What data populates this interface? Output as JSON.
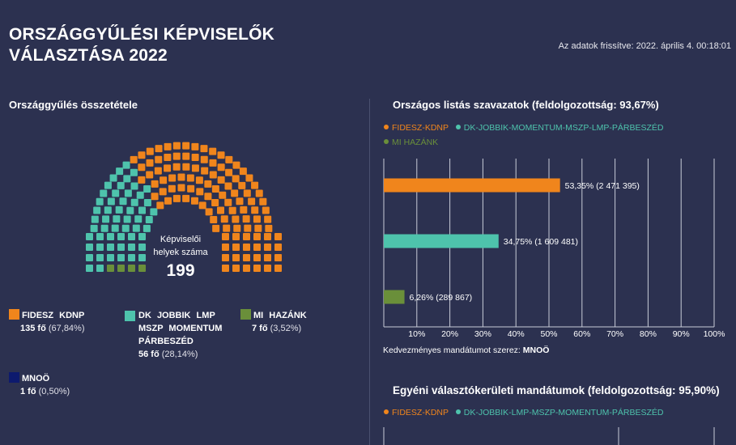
{
  "header": {
    "title": "ORSZÁGGYŰLÉSI KÉPVISELŐK VÁLASZTÁSA 2022",
    "updated": "Az adatok frissítve: 2022. április 4. 00:18:01"
  },
  "composition": {
    "title": "Országgyűlés összetétele",
    "center_label_1": "Képviselői",
    "center_label_2": "helyek száma",
    "total": "199",
    "parties": [
      {
        "name": "FIDESZ KDNP",
        "count": "135 fő",
        "pct": "(67,84%)",
        "color": "#f0851c",
        "seats": 135
      },
      {
        "name": "DK JOBBIK LMP MSZP MOMENTUM PÁRBESZÉD",
        "count": "56 fő",
        "pct": "(28,14%)",
        "color": "#4ec3ac",
        "seats": 56
      },
      {
        "name": "MI HAZÁNK",
        "count": "7 fő",
        "pct": "(3,52%)",
        "color": "#6a8f3a",
        "seats": 7
      },
      {
        "name": "MNOÖ",
        "count": "1 fő",
        "pct": "(0,50%)",
        "color": "#0d1a6e",
        "seats": 1
      }
    ]
  },
  "list_votes": {
    "legend": [
      {
        "name": "FIDESZ-KDNP",
        "color": "#f0851c"
      },
      {
        "name": "DK-JOBBIK-MOMENTUM-MSZP-LMP-PÁRBESZÉD",
        "color": "#4ec3ac"
      },
      {
        "name": "MI HAZÁNK",
        "color": "#6a8f3a"
      }
    ],
    "note_prefix": "Kedvezményes mandátumot szerez:",
    "note_value": "MNOÖ"
  },
  "chart_data": {
    "type": "bar",
    "orientation": "horizontal",
    "title": "Országos listás szavazatok (feldolgozottság: 93,67%)",
    "categories": [
      "FIDESZ-KDNP",
      "DK-JOBBIK-MOMENTUM-MSZP-LMP-PÁRBESZÉD",
      "MI HAZÁNK"
    ],
    "values": [
      53.35,
      34.75,
      6.26
    ],
    "data_labels": [
      "53,35% (2 471 395)",
      "34,75% (1 609 481)",
      "6,26% (289 867)"
    ],
    "colors": [
      "#f0851c",
      "#4ec3ac",
      "#6a8f3a"
    ],
    "xlim": [
      0,
      100
    ],
    "x_ticks": [
      "10%",
      "20%",
      "30%",
      "40%",
      "50%",
      "60%",
      "70%",
      "80%",
      "90%",
      "100%"
    ],
    "grid": true
  },
  "district": {
    "title": "Egyéni választókerületi mandátumok (feldolgozottság: 95,90%)",
    "legend": [
      {
        "name": "FIDESZ-KDNP",
        "color": "#f0851c"
      },
      {
        "name": "DK-JOBBIK-LMP-MSZP-MOMENTUM-PÁRBESZÉD",
        "color": "#4ec3ac"
      }
    ]
  }
}
